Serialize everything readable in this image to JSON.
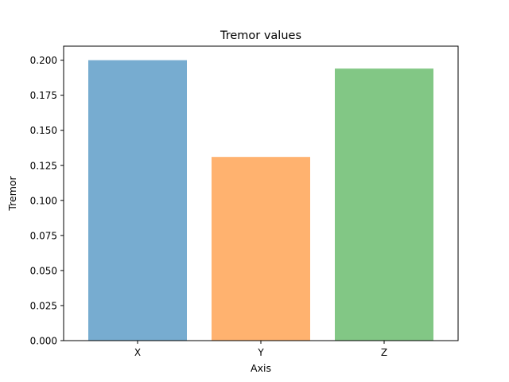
{
  "chart_data": {
    "type": "bar",
    "title": "Tremor values",
    "xlabel": "Axis",
    "ylabel": "Tremor",
    "categories": [
      "X",
      "Y",
      "Z"
    ],
    "values": [
      0.2,
      0.131,
      0.194
    ],
    "colors": [
      "#77acd0",
      "#ffb26f",
      "#82c785"
    ],
    "ylim": [
      0,
      0.21
    ],
    "yticks": [
      0.0,
      0.025,
      0.05,
      0.075,
      0.1,
      0.125,
      0.15,
      0.175,
      0.2
    ],
    "ytick_labels": [
      "0.000",
      "0.025",
      "0.050",
      "0.075",
      "0.100",
      "0.125",
      "0.150",
      "0.175",
      "0.200"
    ],
    "grid": false,
    "legend": "none"
  }
}
